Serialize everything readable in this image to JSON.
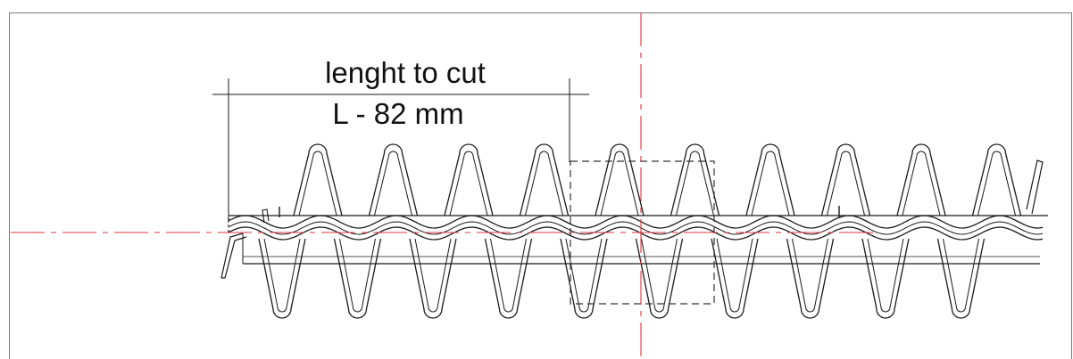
{
  "dimension": {
    "line1": "lenght to cut",
    "line2": "L - 82 mm"
  },
  "colors": {
    "outline": "#1a1a1a",
    "center_line": "#e0383d",
    "dashed_box": "#333333",
    "background": "#ffffff"
  },
  "coil": {
    "upper_loop_count": 10,
    "lower_loop_count": 10
  }
}
